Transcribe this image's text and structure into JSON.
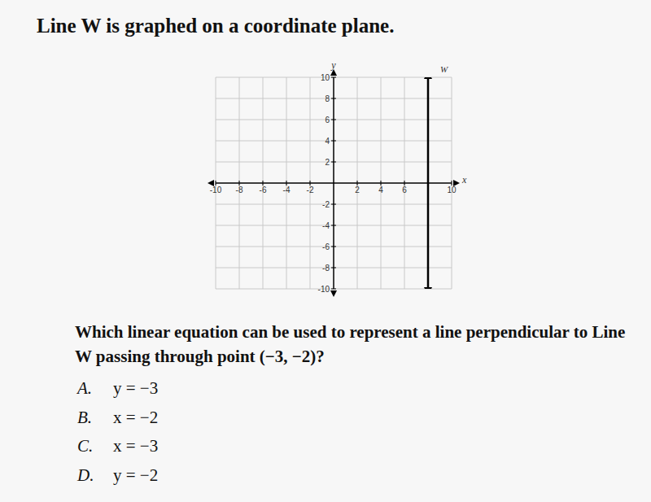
{
  "title": "Line W is graphed on a coordinate plane.",
  "chart_data": {
    "type": "line",
    "xlim": [
      -10,
      10
    ],
    "ylim": [
      -10,
      10
    ],
    "xticks": [
      -10,
      -8,
      -6,
      -4,
      -2,
      2,
      4,
      6,
      10
    ],
    "yticks": [
      -10,
      -8,
      -6,
      -4,
      -2,
      2,
      4,
      6,
      8,
      10
    ],
    "x_label": "x",
    "y_label": "y",
    "grid": true,
    "series": [
      {
        "name": "W",
        "color": "#000000",
        "x": [
          8,
          8
        ],
        "values": [
          -10,
          10
        ]
      }
    ]
  },
  "question": "Which linear equation can be used to represent a line perpendicular to Line W passing through point (−3, −2)?",
  "choices": [
    {
      "letter": "A.",
      "text": "y = −3"
    },
    {
      "letter": "B.",
      "text": "x = −2"
    },
    {
      "letter": "C.",
      "text": "x = −3"
    },
    {
      "letter": "D.",
      "text": "y = −2"
    }
  ]
}
